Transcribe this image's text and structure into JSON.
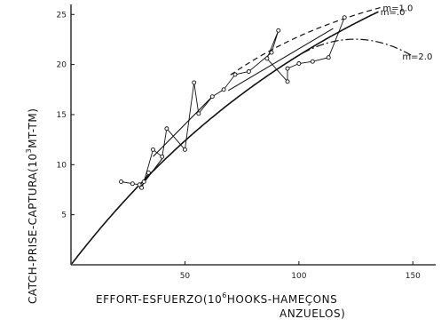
{
  "chart_data": {
    "type": "line",
    "xlabel": {
      "prefix": "EFFORT-ESFUERZO(10",
      "sup": "6",
      "suffix": "HOOKS-HAMEÇONS",
      "line2": "ANZUELOS)"
    },
    "ylabel": {
      "prefix": "CATCH-PRISE-CAPTURA(10",
      "sup": "3",
      "suffix": "MT-TM)"
    },
    "xlim": [
      0,
      160
    ],
    "ylim": [
      0,
      26
    ],
    "x_ticks": [
      {
        "value": 50,
        "label": "50"
      },
      {
        "value": 100,
        "label": "100"
      },
      {
        "value": 150,
        "label": "150"
      }
    ],
    "y_ticks": [
      {
        "value": 5,
        "label": "5"
      },
      {
        "value": 10,
        "label": "10"
      },
      {
        "value": 15,
        "label": "15"
      },
      {
        "value": 20,
        "label": "20"
      },
      {
        "value": 25,
        "label": "25"
      }
    ],
    "observed": [
      [
        22,
        8.3
      ],
      [
        27,
        8.1
      ],
      [
        30,
        8.0
      ],
      [
        31,
        7.7
      ],
      [
        34,
        9.2
      ],
      [
        32,
        8.3
      ],
      [
        36,
        11.5
      ],
      [
        40,
        10.8
      ],
      [
        42,
        13.6
      ],
      [
        50,
        11.5
      ],
      [
        54,
        18.2
      ],
      [
        56,
        15.1
      ],
      [
        62,
        16.8
      ],
      [
        67,
        17.5
      ],
      [
        72,
        19.0
      ],
      [
        78,
        19.3
      ],
      [
        88,
        21.2
      ],
      [
        91,
        23.4
      ],
      [
        86,
        20.6
      ],
      [
        95,
        18.3
      ],
      [
        95,
        19.6
      ],
      [
        100,
        20.1
      ],
      [
        106,
        20.3
      ],
      [
        113,
        20.7
      ],
      [
        120,
        24.7
      ]
    ],
    "fitted_lines": [
      {
        "name": "",
        "points": [
          [
            36,
            10.8
          ],
          [
            62,
            16.8
          ]
        ]
      },
      {
        "name": "",
        "points": [
          [
            30,
            7.6
          ],
          [
            40,
            10.6
          ]
        ]
      },
      {
        "name": "",
        "points": [
          [
            69,
            17.4
          ],
          [
            115,
            23.6
          ]
        ]
      }
    ],
    "curves": [
      {
        "name": "m=.0",
        "style": "solid",
        "x_end": 135,
        "asymptote": 40
      },
      {
        "name": "m=1.0",
        "style": "dashed",
        "x_end": 136,
        "asymptote": 30
      },
      {
        "name": "m=2.0",
        "style": "dashdot",
        "x_end": 150
      }
    ],
    "grid": false,
    "legend": "curve labels at right end of curves",
    "colors": {
      "ink": "#111111",
      "background": "#ffffff"
    }
  }
}
